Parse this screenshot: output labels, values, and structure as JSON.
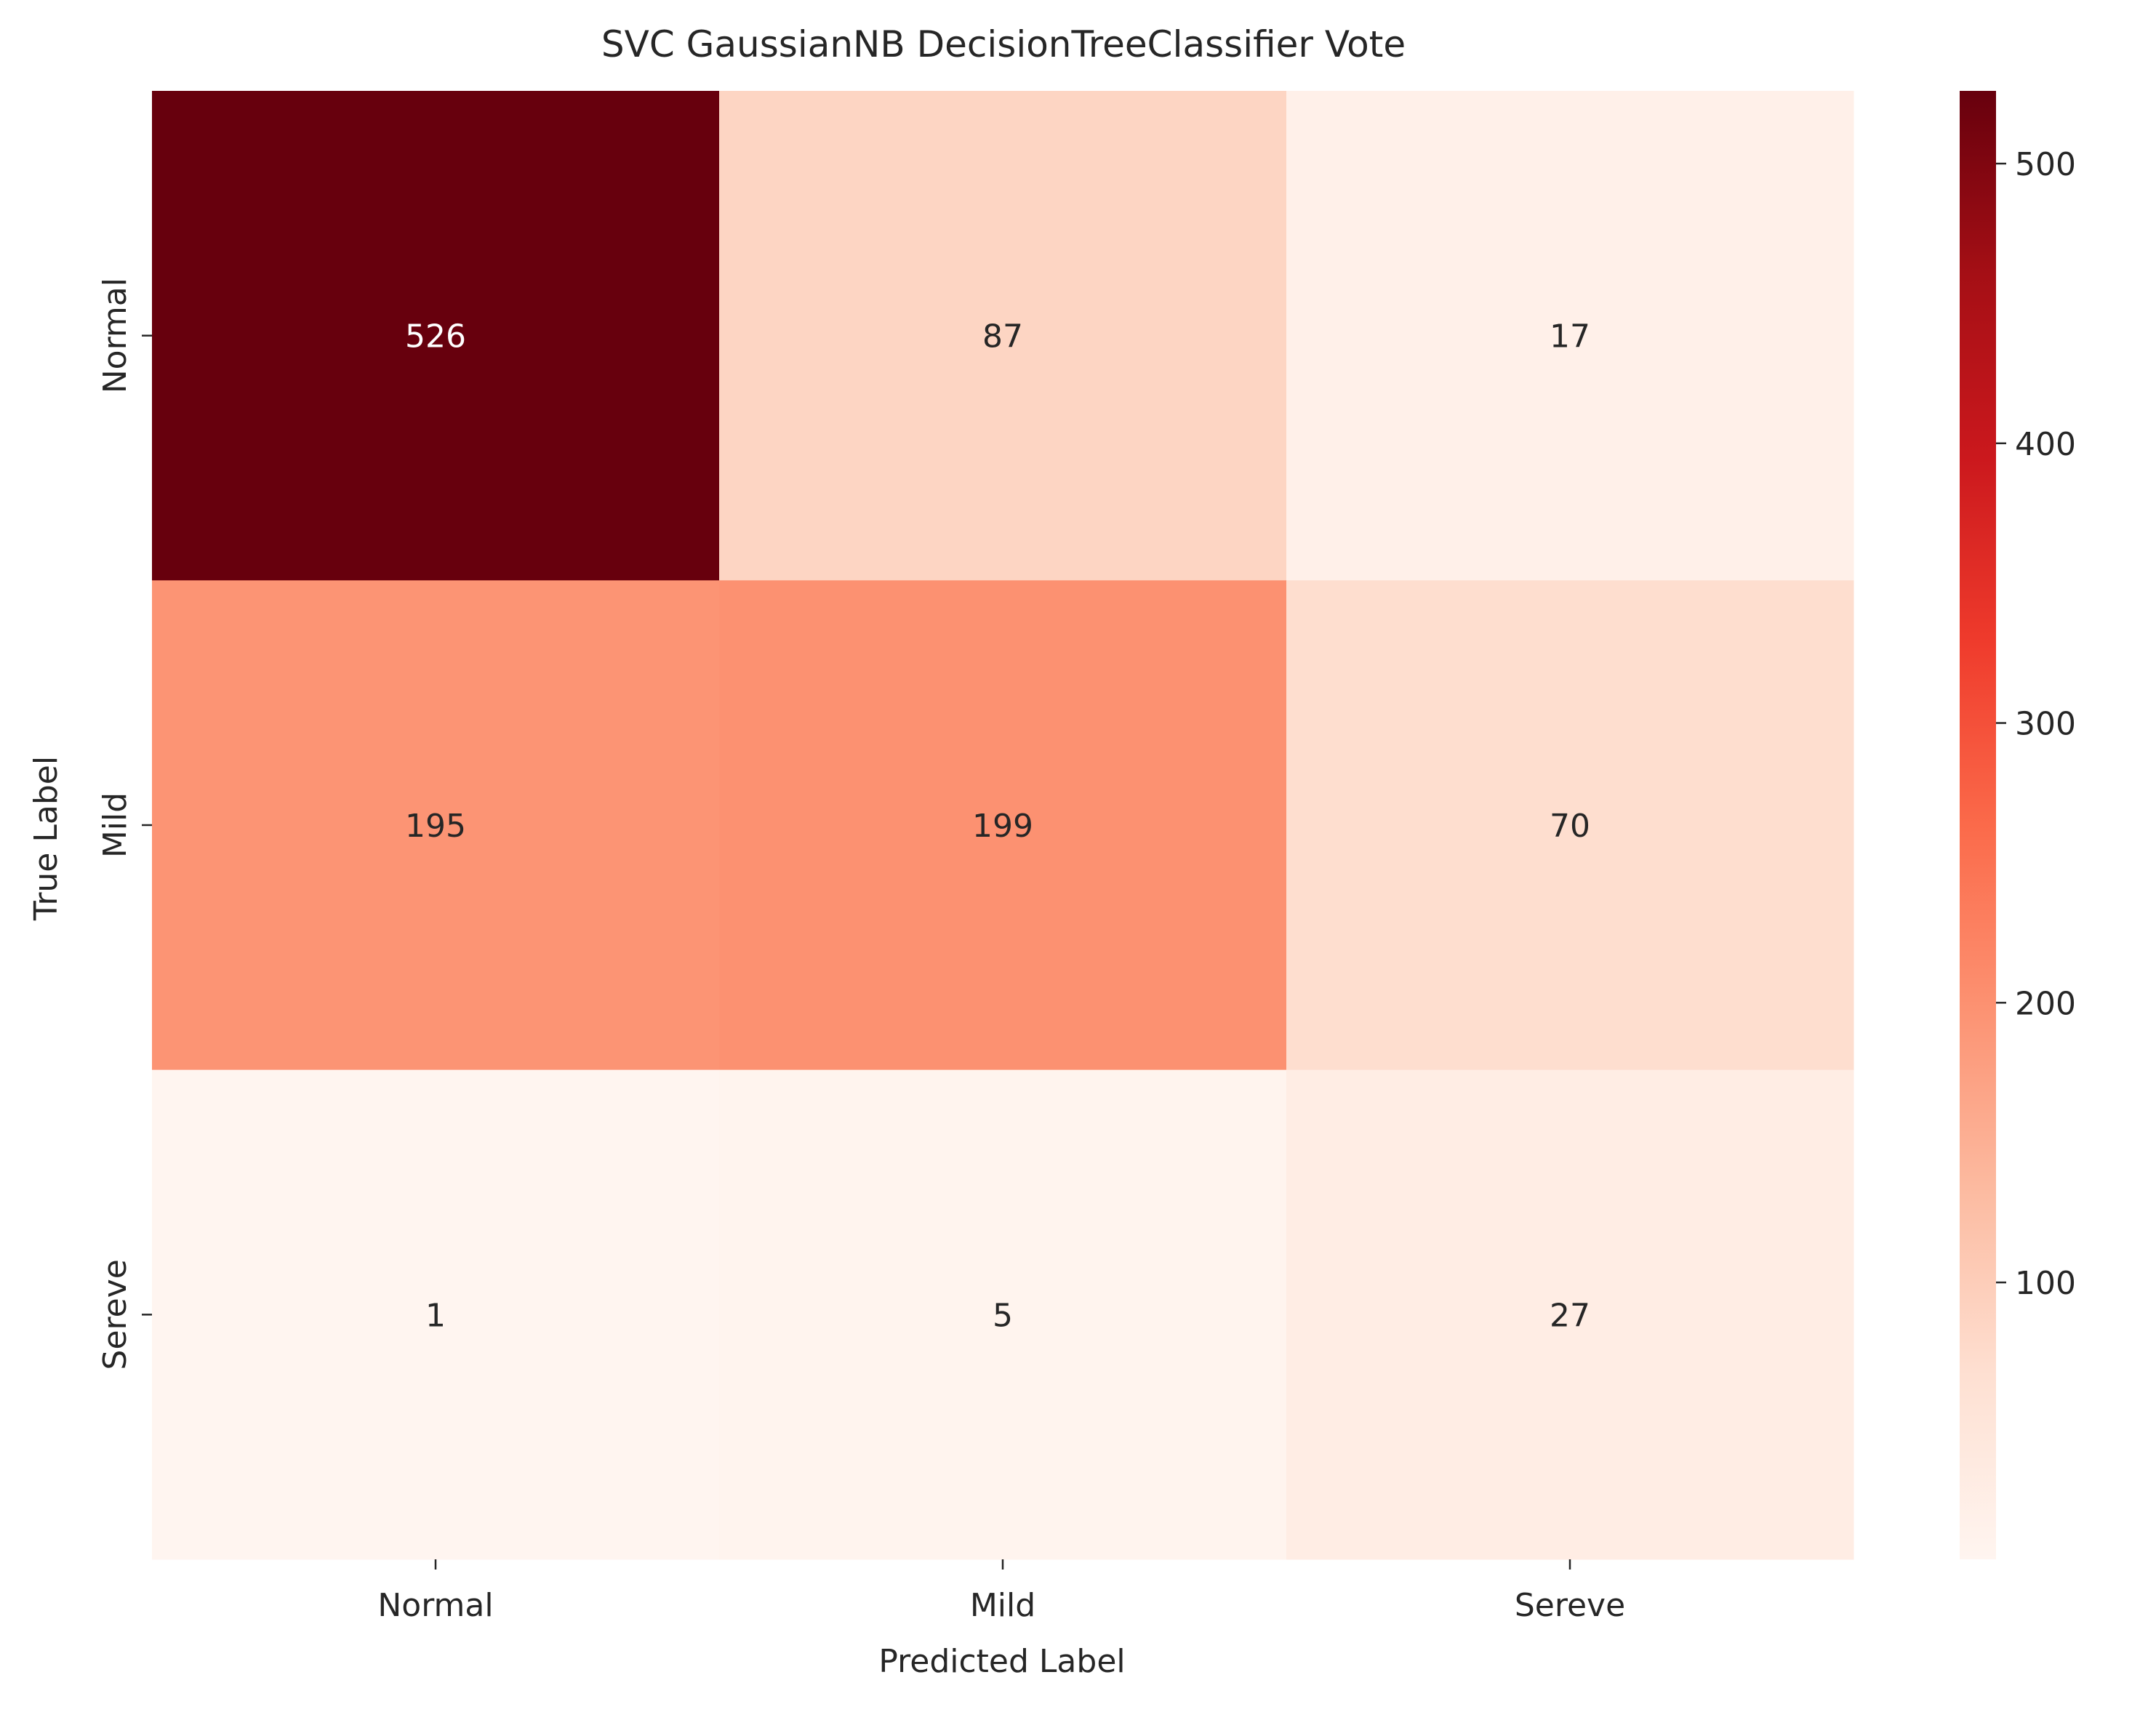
{
  "chart_data": {
    "type": "heatmap",
    "title": "SVC GaussianNB DecisionTreeClassifier Vote",
    "xlabel": "Predicted Label",
    "ylabel": "True Label",
    "x_categories": [
      "Normal",
      "Mild",
      "Sereve"
    ],
    "y_categories": [
      "Normal",
      "Mild",
      "Sereve"
    ],
    "values": [
      [
        526,
        87,
        17
      ],
      [
        195,
        199,
        70
      ],
      [
        1,
        5,
        27
      ]
    ],
    "colormap": "Reds",
    "colorbar": {
      "ticks": [
        100,
        200,
        300,
        400,
        500
      ],
      "range": [
        1,
        526
      ]
    },
    "annotation_colors": {
      "dark_cell": "#ffffff",
      "light_cell": "#262626"
    },
    "grid": false,
    "legend": "colorbar-right"
  }
}
